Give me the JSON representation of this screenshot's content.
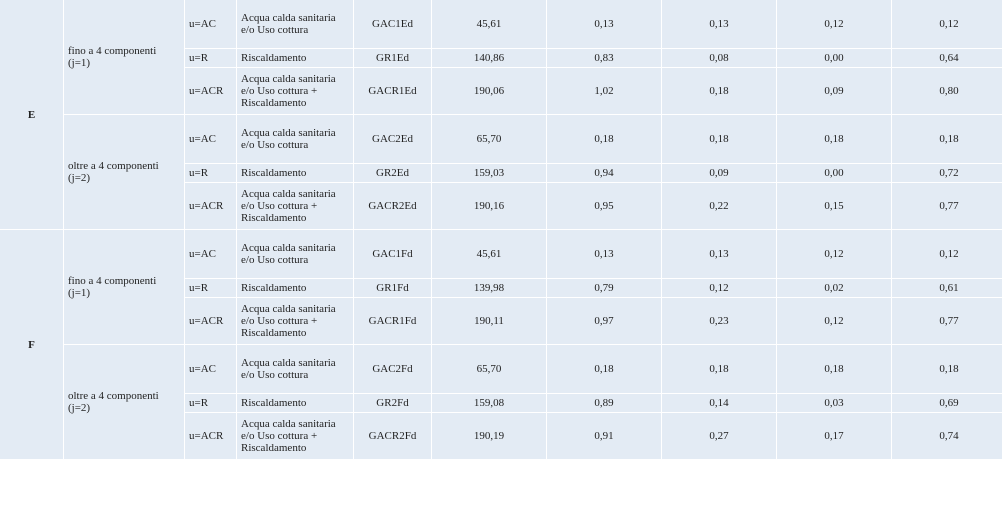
{
  "zones": [
    {
      "zone": "E",
      "groups": [
        {
          "family": "fino a 4 componenti (j=1)",
          "rows": [
            {
              "use": "u=AC",
              "desc": "Acqua calda sanitaria e/o Uso cottura",
              "code": "GAC1Ed",
              "v1": "45,61",
              "v2": "0,13",
              "v3": "0,13",
              "v4": "0,12",
              "v5": "0,12"
            },
            {
              "use": "u=R",
              "desc": "Riscaldamento",
              "code": "GR1Ed",
              "v1": "140,86",
              "v2": "0,83",
              "v3": "0,08",
              "v4": "0,00",
              "v5": "0,64"
            },
            {
              "use": "u=ACR",
              "desc": "Acqua calda sanitaria e/o Uso cottura + Riscaldamento",
              "code": "GACR1Ed",
              "v1": "190,06",
              "v2": "1,02",
              "v3": "0,18",
              "v4": "0,09",
              "v5": "0,80"
            }
          ]
        },
        {
          "family": "oltre a 4 componenti (j=2)",
          "rows": [
            {
              "use": "u=AC",
              "desc": "Acqua calda sanitaria e/o Uso cottura",
              "code": "GAC2Ed",
              "v1": "65,70",
              "v2": "0,18",
              "v3": "0,18",
              "v4": "0,18",
              "v5": "0,18"
            },
            {
              "use": "u=R",
              "desc": "Riscaldamento",
              "code": "GR2Ed",
              "v1": "159,03",
              "v2": "0,94",
              "v3": "0,09",
              "v4": "0,00",
              "v5": "0,72"
            },
            {
              "use": "u=ACR",
              "desc": "Acqua calda sanitaria e/o Uso cottura + Riscaldamento",
              "code": "GACR2Ed",
              "v1": "190,16",
              "v2": "0,95",
              "v3": "0,22",
              "v4": "0,15",
              "v5": "0,77"
            }
          ]
        }
      ]
    },
    {
      "zone": "F",
      "groups": [
        {
          "family": "fino a 4 componenti (j=1)",
          "rows": [
            {
              "use": "u=AC",
              "desc": "Acqua calda sanitaria e/o Uso cottura",
              "code": "GAC1Fd",
              "v1": "45,61",
              "v2": "0,13",
              "v3": "0,13",
              "v4": "0,12",
              "v5": "0,12"
            },
            {
              "use": "u=R",
              "desc": "Riscaldamento",
              "code": "GR1Fd",
              "v1": "139,98",
              "v2": "0,79",
              "v3": "0,12",
              "v4": "0,02",
              "v5": "0,61"
            },
            {
              "use": "u=ACR",
              "desc": "Acqua calda sanitaria e/o Uso cottura + Riscaldamento",
              "code": "GACR1Fd",
              "v1": "190,11",
              "v2": "0,97",
              "v3": "0,23",
              "v4": "0,12",
              "v5": "0,77"
            }
          ]
        },
        {
          "family": "oltre a 4 componenti (j=2)",
          "rows": [
            {
              "use": "u=AC",
              "desc": "Acqua calda sanitaria e/o Uso cottura",
              "code": "GAC2Fd",
              "v1": "65,70",
              "v2": "0,18",
              "v3": "0,18",
              "v4": "0,18",
              "v5": "0,18"
            },
            {
              "use": "u=R",
              "desc": "Riscaldamento",
              "code": "GR2Fd",
              "v1": "159,08",
              "v2": "0,89",
              "v3": "0,14",
              "v4": "0,03",
              "v5": "0,69"
            },
            {
              "use": "u=ACR",
              "desc": "Acqua calda sanitaria e/o Uso cottura + Riscaldamento",
              "code": "GACR2Fd",
              "v1": "190,19",
              "v2": "0,91",
              "v3": "0,27",
              "v4": "0,17",
              "v5": "0,74"
            }
          ]
        }
      ]
    }
  ]
}
